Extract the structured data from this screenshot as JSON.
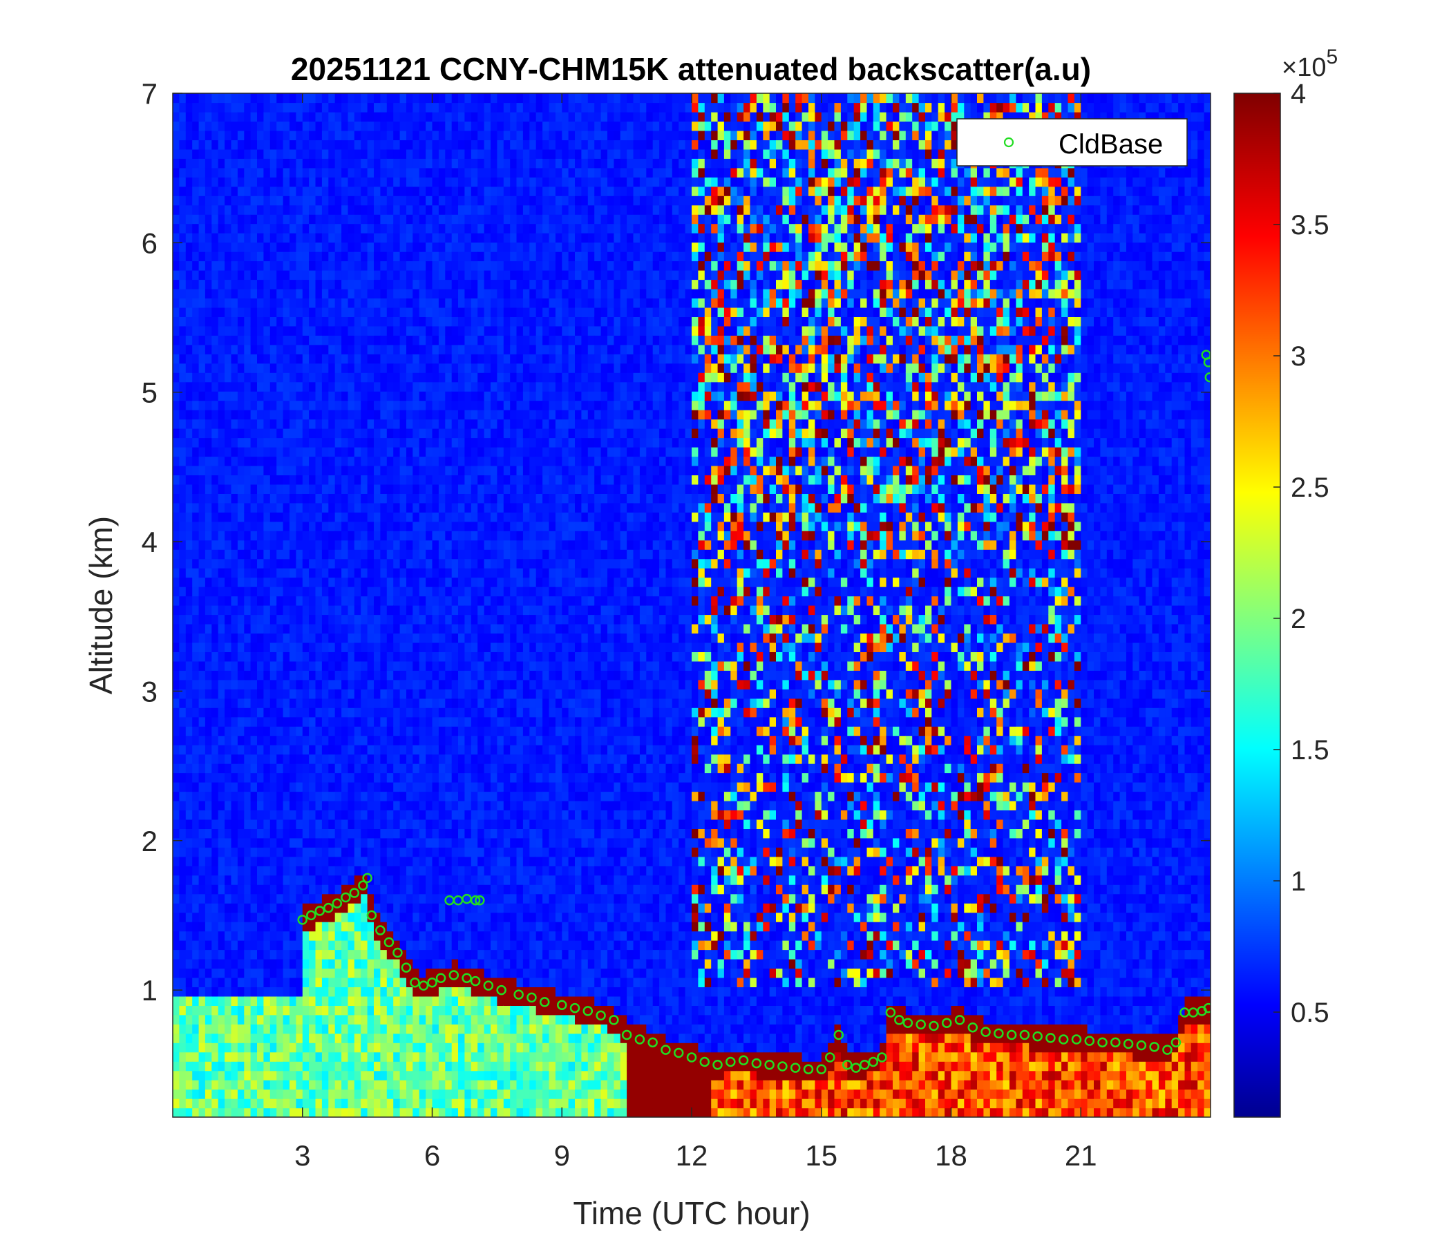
{
  "chart_data": {
    "type": "heatmap",
    "title": "20251121 CCNY-CHM15K attenuated backscatter(a.u)",
    "xlabel": "Time (UTC hour)",
    "ylabel": "Altitude (km)",
    "xlim": [
      0,
      24
    ],
    "ylim": [
      0.15,
      7
    ],
    "x_ticks": [
      3,
      6,
      9,
      12,
      15,
      18,
      21
    ],
    "x_tick_labels": [
      "3",
      "6",
      "9",
      "12",
      "15",
      "18",
      "21"
    ],
    "y_ticks": [
      1,
      2,
      3,
      4,
      5,
      6,
      7
    ],
    "y_tick_labels": [
      "1",
      "2",
      "3",
      "4",
      "5",
      "6",
      "7"
    ],
    "colormap": "jet",
    "colorbar": {
      "range": [
        10000,
        400000
      ],
      "ticks": [
        50000,
        100000,
        150000,
        200000,
        250000,
        300000,
        350000,
        400000
      ],
      "tick_labels": [
        "0.5",
        "1",
        "1.5",
        "2",
        "2.5",
        "3",
        "3.5",
        "4"
      ],
      "exponent_label": "×10",
      "exponent_power": "5"
    },
    "legend": {
      "position": "top-right",
      "entries": [
        "CldBase"
      ]
    },
    "series": [
      {
        "name": "CldBase",
        "marker": "circle",
        "color": "#22dd22",
        "x": [
          3.0,
          3.2,
          3.4,
          3.6,
          3.8,
          4.0,
          4.2,
          4.4,
          4.5,
          4.6,
          4.8,
          5.0,
          5.2,
          5.4,
          5.6,
          5.8,
          6.0,
          6.2,
          6.5,
          6.8,
          7.0,
          7.3,
          7.6,
          8.0,
          8.3,
          8.6,
          9.0,
          9.3,
          9.6,
          9.9,
          10.2,
          10.5,
          10.8,
          11.1,
          11.4,
          11.7,
          12.0,
          12.3,
          12.6,
          12.9,
          13.2,
          13.5,
          13.8,
          14.1,
          14.4,
          14.7,
          15.0,
          15.2,
          15.4,
          15.6,
          15.8,
          16.0,
          16.2,
          16.4,
          16.6,
          16.8,
          17.0,
          17.3,
          17.6,
          17.9,
          18.2,
          18.5,
          18.8,
          19.1,
          19.4,
          19.7,
          20.0,
          20.3,
          20.6,
          20.9,
          21.2,
          21.5,
          21.8,
          22.1,
          22.4,
          22.7,
          23.0,
          23.2,
          23.4,
          23.6,
          23.8,
          23.95
        ],
        "y": [
          1.47,
          1.5,
          1.53,
          1.55,
          1.58,
          1.62,
          1.65,
          1.7,
          1.75,
          1.5,
          1.4,
          1.32,
          1.25,
          1.15,
          1.05,
          1.03,
          1.05,
          1.08,
          1.1,
          1.08,
          1.06,
          1.03,
          1.0,
          0.97,
          0.95,
          0.92,
          0.9,
          0.88,
          0.86,
          0.83,
          0.8,
          0.7,
          0.67,
          0.65,
          0.6,
          0.58,
          0.55,
          0.52,
          0.5,
          0.52,
          0.53,
          0.51,
          0.5,
          0.49,
          0.48,
          0.47,
          0.47,
          0.55,
          0.7,
          0.5,
          0.48,
          0.5,
          0.52,
          0.55,
          0.85,
          0.8,
          0.78,
          0.77,
          0.76,
          0.78,
          0.8,
          0.75,
          0.72,
          0.71,
          0.7,
          0.7,
          0.69,
          0.68,
          0.67,
          0.67,
          0.66,
          0.65,
          0.65,
          0.64,
          0.63,
          0.62,
          0.6,
          0.65,
          0.85,
          0.85,
          0.86,
          0.88
        ]
      },
      {
        "name": "",
        "marker": "circle",
        "color": "#22dd22",
        "x": [
          6.4,
          6.6,
          6.8,
          7.0,
          7.1
        ],
        "y": [
          1.6,
          1.6,
          1.61,
          1.6,
          1.6
        ]
      },
      {
        "name": "",
        "marker": "circle",
        "color": "#22dd22",
        "x": [
          23.9,
          23.95,
          23.98
        ],
        "y": [
          5.25,
          5.2,
          5.1
        ]
      }
    ]
  }
}
